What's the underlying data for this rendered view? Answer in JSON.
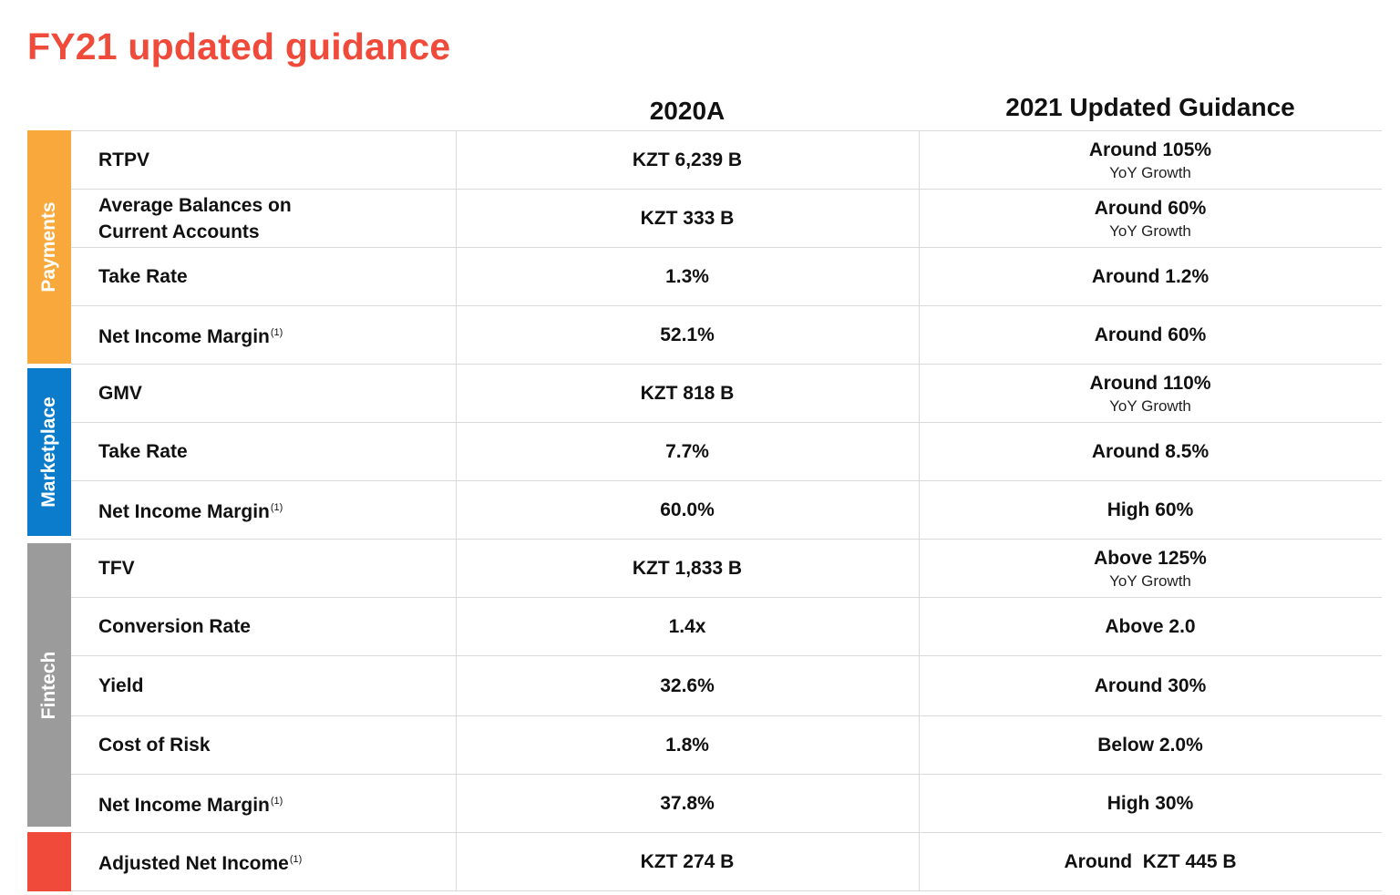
{
  "title": "FY21 updated guidance",
  "columns": {
    "actual_header": "2020A",
    "guidance_header": "2021 Updated Guidance"
  },
  "colors": {
    "title": "#ef4a3a",
    "payments": "#f9a93b",
    "marketplace": "#0a7ccb",
    "fintech": "#9b9b9b",
    "adjusted": "#ef4a3a"
  },
  "sections": [
    {
      "label": "Payments",
      "rows": [
        {
          "metric_line1": "RTPV",
          "metric_line2": "",
          "footnote": "",
          "actual": "KZT 6,239 B",
          "guidance": "Around 105%",
          "guidance_sub": "YoY Growth"
        },
        {
          "metric_line1": "Average Balances on",
          "metric_line2": "Current Accounts",
          "footnote": "",
          "actual": "KZT 333 B",
          "guidance": "Around 60%",
          "guidance_sub": "YoY Growth"
        },
        {
          "metric_line1": "Take Rate",
          "metric_line2": "",
          "footnote": "",
          "actual": "1.3%",
          "guidance": "Around 1.2%",
          "guidance_sub": ""
        },
        {
          "metric_line1": "Net Income Margin",
          "metric_line2": "",
          "footnote": "(1)",
          "actual": "52.1%",
          "guidance": "Around 60%",
          "guidance_sub": ""
        }
      ]
    },
    {
      "label": "Marketplace",
      "rows": [
        {
          "metric_line1": "GMV",
          "metric_line2": "",
          "footnote": "",
          "actual": "KZT 818 B",
          "guidance": "Around 110%",
          "guidance_sub": "YoY Growth"
        },
        {
          "metric_line1": "Take Rate",
          "metric_line2": "",
          "footnote": "",
          "actual": "7.7%",
          "guidance": "Around 8.5%",
          "guidance_sub": ""
        },
        {
          "metric_line1": "Net Income Margin",
          "metric_line2": "",
          "footnote": "(1)",
          "actual": "60.0%",
          "guidance": "High 60%",
          "guidance_sub": ""
        }
      ]
    },
    {
      "label": "Fintech",
      "rows": [
        {
          "metric_line1": "TFV",
          "metric_line2": "",
          "footnote": "",
          "actual": "KZT 1,833 B",
          "guidance": "Above 125%",
          "guidance_sub": "YoY Growth"
        },
        {
          "metric_line1": "Conversion Rate",
          "metric_line2": "",
          "footnote": "",
          "actual": "1.4x",
          "guidance": "Above 2.0",
          "guidance_sub": ""
        },
        {
          "metric_line1": "Yield",
          "metric_line2": "",
          "footnote": "",
          "actual": "32.6%",
          "guidance": "Around 30%",
          "guidance_sub": ""
        },
        {
          "metric_line1": "Cost of Risk",
          "metric_line2": "",
          "footnote": "",
          "actual": "1.8%",
          "guidance": "Below 2.0%",
          "guidance_sub": ""
        },
        {
          "metric_line1": "Net Income Margin",
          "metric_line2": "",
          "footnote": "(1)",
          "actual": "37.8%",
          "guidance": "High 30%",
          "guidance_sub": ""
        }
      ]
    },
    {
      "label": "",
      "rows": [
        {
          "metric_line1": "Adjusted Net Income",
          "metric_line2": "",
          "footnote": "(1)",
          "actual": "KZT 274 B",
          "guidance": "Around  KZT 445 B",
          "guidance_sub": ""
        }
      ]
    }
  ]
}
